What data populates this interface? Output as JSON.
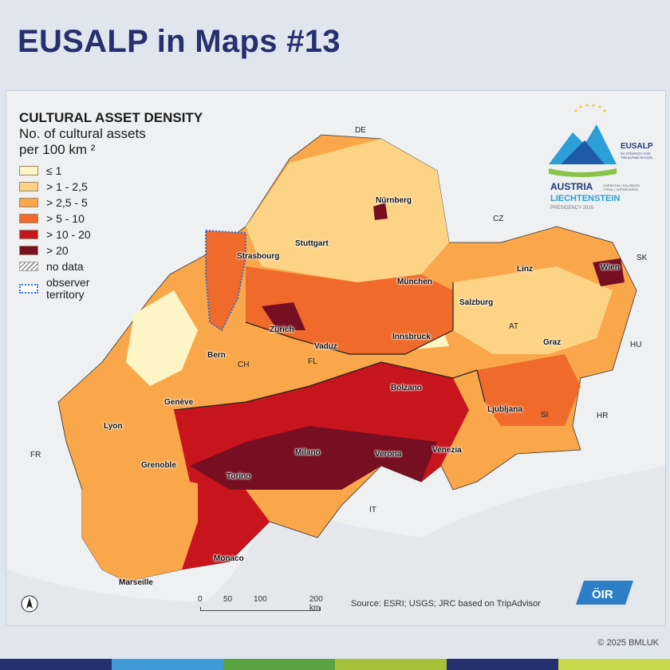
{
  "title": "EUSALP in Maps #13",
  "legend": {
    "title": "CULTURAL ASSET DENSITY",
    "subtitle_line1": "No. of cultural assets",
    "subtitle_line2": "per 100 km ²",
    "classes": [
      {
        "label": "≤ 1",
        "color": "#fdf5c5"
      },
      {
        "label": "> 1 - 2,5",
        "color": "#fdd485"
      },
      {
        "label": "> 2,5 - 5",
        "color": "#f9a74a"
      },
      {
        "label": "> 5 - 10",
        "color": "#f06a2c"
      },
      {
        "label": "> 10 - 20",
        "color": "#c8141c"
      },
      {
        "label": "> 20",
        "color": "#760f22"
      }
    ],
    "no_data_label": "no data",
    "observer_line1": "observer",
    "observer_line2": "territory"
  },
  "logo": {
    "brand": "EUSALP",
    "brand_sub1": "EU STRATEGY FOR",
    "brand_sub2": "THE ALPINE REGION",
    "country1": "AUSTRIA",
    "country2": "LIECHTENSTEIN",
    "regions1": "CARINTHIA | SALZBURG",
    "regions2": "TYROL | VORARLBERG",
    "presidency": "PRESIDENCY 2025"
  },
  "countries": [
    "DE",
    "CZ",
    "SK",
    "AT",
    "HU",
    "HR",
    "SI",
    "CH",
    "FL",
    "FR",
    "IT"
  ],
  "cities": [
    "Nürnberg",
    "Stuttgart",
    "Strasbourg",
    "München",
    "Linz",
    "Wien",
    "Salzburg",
    "Zürich",
    "Vaduz",
    "Innsbruck",
    "Bern",
    "Graz",
    "Bolzano",
    "Genève",
    "Ljubljana",
    "Lyon",
    "Milano",
    "Verona",
    "Venezia",
    "Grenoble",
    "Torino",
    "Monaco",
    "Marseille"
  ],
  "scale": {
    "ticks": [
      "0",
      "50",
      "100",
      "200 km"
    ]
  },
  "source": "Source: ESRI; USGS; JRC based on TripAdvisor",
  "oir_logo": "ÖIR",
  "copyright": "© 2025 BMLUK",
  "colors": {
    "title": "#27306f",
    "bottom_bar": [
      "#27306f",
      "#3f9ad6",
      "#5aa340",
      "#a6c23a",
      "#27306f",
      "#c7d84a"
    ]
  }
}
